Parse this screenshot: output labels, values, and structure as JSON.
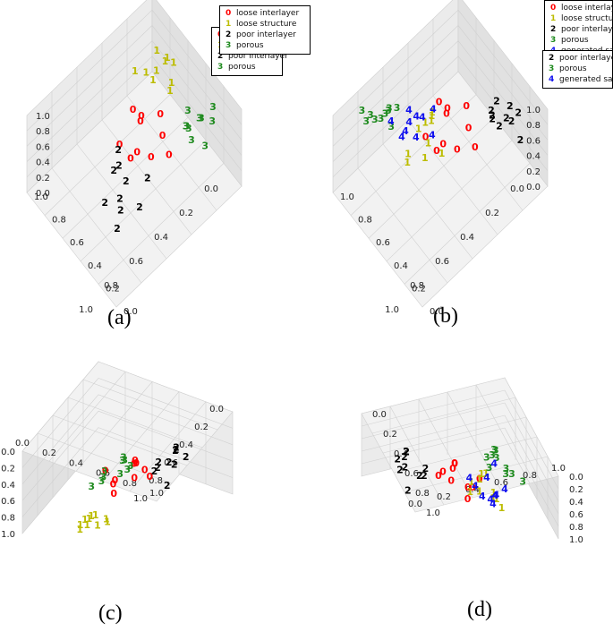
{
  "colors": {
    "0": "#ff0000",
    "1": "#bcbc00",
    "2": "#000000",
    "3": "#1e8a1e",
    "4": "#1010ee"
  },
  "chart_data": [
    {
      "type": "scatter",
      "caption": "(a)",
      "view": "default",
      "legend": {
        "back": [
          {
            "num": "0",
            "label": "loose interlayer"
          },
          {
            "num": "1",
            "label": "loose structure"
          },
          {
            "num": "2",
            "label": "poor interlayer"
          },
          {
            "num": "3",
            "label": "porous"
          }
        ],
        "front": [
          {
            "num": "0",
            "label": "loose interlayer"
          },
          {
            "num": "1",
            "label": "loose structure"
          },
          {
            "num": "2",
            "label": "poor interlayer"
          },
          {
            "num": "3",
            "label": "porous"
          }
        ]
      },
      "axes": {
        "x_ticks": [
          "0.0",
          "0.2",
          "0.4",
          "0.6",
          "0.8",
          "1.0"
        ],
        "y_ticks": [
          "1.0",
          "0.8",
          "0.6",
          "0.4",
          "0.2",
          "0.0"
        ],
        "z_ticks": [
          "0.0",
          "0.2",
          "0.4",
          "0.6",
          "0.8",
          "1.0"
        ]
      },
      "xlim": [
        0,
        1
      ],
      "ylim": [
        0,
        1
      ],
      "zlim": [
        0,
        1
      ],
      "series": [
        {
          "name": "loose interlayer",
          "marker": "0",
          "x": [
            0.3,
            0.42,
            0.26,
            0.35,
            0.46,
            0.22,
            0.38,
            0.5,
            0.31,
            0.28
          ],
          "y": [
            0.3,
            0.42,
            0.48,
            0.36,
            0.28,
            0.4,
            0.52,
            0.46,
            0.22,
            0.58
          ],
          "z": [
            0.3,
            0.2,
            0.25,
            0.4,
            0.15,
            0.35,
            0.22,
            0.3,
            0.28,
            0.18
          ]
        },
        {
          "name": "loose structure",
          "marker": "1",
          "x": [
            0.12,
            0.18,
            0.1,
            0.22,
            0.16,
            0.25,
            0.08,
            0.2,
            0.14,
            0.28
          ],
          "y": [
            0.22,
            0.3,
            0.38,
            0.24,
            0.44,
            0.36,
            0.28,
            0.48,
            0.34,
            0.2
          ],
          "z": [
            0.75,
            0.7,
            0.8,
            0.65,
            0.72,
            0.78,
            0.68,
            0.74,
            0.82,
            0.7
          ]
        },
        {
          "name": "poor interlayer",
          "marker": "2",
          "x": [
            0.55,
            0.65,
            0.48,
            0.72,
            0.6,
            0.52,
            0.68,
            0.58,
            0.62,
            0.75
          ],
          "y": [
            0.4,
            0.55,
            0.62,
            0.48,
            0.7,
            0.35,
            0.6,
            0.52,
            0.44,
            0.66
          ],
          "z": [
            0.2,
            0.15,
            0.25,
            0.1,
            0.18,
            0.28,
            0.12,
            0.22,
            0.3,
            0.08
          ]
        },
        {
          "name": "porous",
          "marker": "3",
          "x": [
            0.18,
            0.24,
            0.12,
            0.28,
            0.2,
            0.15,
            0.3,
            0.22,
            0.26,
            0.1
          ],
          "y": [
            0.78,
            0.72,
            0.84,
            0.8,
            0.68,
            0.76,
            0.86,
            0.9,
            0.74,
            0.82
          ],
          "z": [
            0.8,
            0.7,
            0.75,
            0.85,
            0.78,
            0.72,
            0.82,
            0.68,
            0.76,
            0.88
          ]
        }
      ]
    },
    {
      "type": "scatter",
      "caption": "(b)",
      "view": "default",
      "legend": {
        "back": [
          {
            "num": "0",
            "label": "loose interlayer"
          },
          {
            "num": "1",
            "label": "loose structure"
          },
          {
            "num": "2",
            "label": "poor interlayer"
          },
          {
            "num": "3",
            "label": "porous"
          },
          {
            "num": "4",
            "label": "generated sample"
          }
        ],
        "front": [
          {
            "num": "2",
            "label": "poor interlayer"
          },
          {
            "num": "3",
            "label": "porous"
          },
          {
            "num": "4",
            "label": "generated sample"
          }
        ]
      },
      "axes": {
        "x_ticks": [
          "0.0",
          "0.2",
          "0.4",
          "0.6",
          "0.8",
          "1.0"
        ],
        "y_ticks": [
          "1.0",
          "0.8",
          "0.6",
          "0.4",
          "0.2",
          "0.0"
        ],
        "z_ticks": [
          "0.0",
          "0.2",
          "0.4",
          "0.6",
          "0.8",
          "1.0"
        ]
      },
      "xlim": [
        0,
        1
      ],
      "ylim": [
        0,
        1
      ],
      "zlim": [
        0,
        1
      ],
      "series": [
        {
          "name": "loose interlayer",
          "marker": "0",
          "x": [
            0.3,
            0.42,
            0.26,
            0.35,
            0.46,
            0.22,
            0.38,
            0.5,
            0.31,
            0.28
          ],
          "y": [
            0.3,
            0.42,
            0.48,
            0.36,
            0.28,
            0.4,
            0.52,
            0.46,
            0.22,
            0.58
          ],
          "z": [
            0.4,
            0.3,
            0.35,
            0.5,
            0.25,
            0.45,
            0.32,
            0.4,
            0.38,
            0.28
          ]
        },
        {
          "name": "loose structure",
          "marker": "1",
          "x": [
            0.5,
            0.56,
            0.46,
            0.62,
            0.54,
            0.48,
            0.6,
            0.52,
            0.58,
            0.44
          ],
          "y": [
            0.4,
            0.34,
            0.46,
            0.3,
            0.42,
            0.38,
            0.28,
            0.36,
            0.44,
            0.32
          ],
          "z": [
            0.7,
            0.6,
            0.3,
            0.2,
            0.5,
            0.75,
            0.25,
            0.65,
            0.4,
            0.55
          ]
        },
        {
          "name": "poor interlayer",
          "marker": "2",
          "x": [
            0.05,
            0.1,
            0.02,
            0.12,
            0.08,
            0.04,
            0.15,
            0.06,
            0.1,
            0.03
          ],
          "y": [
            0.5,
            0.6,
            0.7,
            0.55,
            0.65,
            0.75,
            0.58,
            0.68,
            0.52,
            0.62
          ],
          "z": [
            0.4,
            0.3,
            0.5,
            0.35,
            0.45,
            0.25,
            0.55,
            0.42,
            0.32,
            0.48
          ]
        },
        {
          "name": "porous",
          "marker": "3",
          "x": [
            0.7,
            0.78,
            0.66,
            0.82,
            0.74,
            0.68,
            0.8,
            0.72,
            0.76,
            0.84
          ],
          "y": [
            0.2,
            0.16,
            0.24,
            0.12,
            0.22,
            0.18,
            0.14,
            0.26,
            0.2,
            0.1
          ],
          "z": [
            0.85,
            0.8,
            0.88,
            0.78,
            0.9,
            0.82,
            0.86,
            0.76,
            0.84,
            0.92
          ]
        },
        {
          "name": "generated sample",
          "marker": "4",
          "x": [
            0.5,
            0.6,
            0.45,
            0.65,
            0.55,
            0.48,
            0.62,
            0.52,
            0.58,
            0.68
          ],
          "y": [
            0.3,
            0.25,
            0.35,
            0.28,
            0.22,
            0.38,
            0.32,
            0.26,
            0.34,
            0.2
          ],
          "z": [
            0.6,
            0.5,
            0.7,
            0.55,
            0.65,
            0.45,
            0.75,
            0.58,
            0.52,
            0.68
          ]
        }
      ]
    },
    {
      "type": "scatter",
      "caption": "(c)",
      "view": "top",
      "legend": null,
      "axes": {
        "x_ticks": [
          "0.0",
          "0.2",
          "0.4",
          "0.6",
          "0.8",
          "1.0"
        ],
        "y_ticks": [
          "0.0",
          "0.2",
          "0.4",
          "0.6",
          "0.8",
          "1.0"
        ],
        "z_ticks": [
          "0.0",
          "0.2",
          "0.4",
          "0.6",
          "0.8",
          "1.0"
        ]
      },
      "xlim": [
        0,
        1
      ],
      "ylim": [
        0,
        1
      ],
      "zlim": [
        0,
        1
      ],
      "series": [
        {
          "name": "loose interlayer",
          "marker": "0",
          "x": [
            0.5,
            0.55,
            0.45,
            0.6,
            0.52,
            0.48,
            0.58,
            0.42,
            0.62,
            0.54
          ],
          "y": [
            0.4,
            0.5,
            0.6,
            0.45,
            0.7,
            0.35,
            0.55,
            0.65,
            0.42,
            0.75
          ],
          "z": [
            0.5,
            0.4,
            0.6,
            0.5,
            0.4,
            0.6,
            0.5,
            0.4,
            0.6,
            0.5
          ]
        },
        {
          "name": "loose structure",
          "marker": "1",
          "x": [
            0.4,
            0.46,
            0.36,
            0.5,
            0.42,
            0.38,
            0.48,
            0.44,
            0.34,
            0.52
          ],
          "y": [
            0.8,
            0.85,
            0.88,
            0.78,
            0.92,
            0.82,
            0.86,
            0.9,
            0.84,
            0.8
          ],
          "z": [
            0.8,
            0.7,
            0.9,
            0.8,
            0.7,
            0.9,
            0.8,
            0.7,
            0.9,
            0.8
          ]
        },
        {
          "name": "poor interlayer",
          "marker": "2",
          "x": [
            0.75,
            0.8,
            0.7,
            0.85,
            0.78,
            0.72,
            0.82,
            0.76,
            0.74,
            0.88
          ],
          "y": [
            0.3,
            0.4,
            0.5,
            0.35,
            0.6,
            0.25,
            0.45,
            0.55,
            0.38,
            0.65
          ],
          "z": [
            0.3,
            0.2,
            0.4,
            0.3,
            0.2,
            0.4,
            0.3,
            0.2,
            0.4,
            0.3
          ]
        },
        {
          "name": "porous",
          "marker": "3",
          "x": [
            0.3,
            0.35,
            0.25,
            0.38,
            0.32,
            0.28,
            0.36,
            0.3,
            0.34,
            0.26
          ],
          "y": [
            0.2,
            0.3,
            0.4,
            0.25,
            0.5,
            0.15,
            0.35,
            0.45,
            0.22,
            0.55
          ],
          "z": [
            0.8,
            0.7,
            0.9,
            0.8,
            0.7,
            0.9,
            0.8,
            0.7,
            0.9,
            0.8
          ]
        }
      ]
    },
    {
      "type": "scatter",
      "caption": "(d)",
      "view": "top-flipped",
      "legend": null,
      "axes": {
        "x_ticks": [
          "1.0",
          "0.8",
          "0.6",
          "0.4",
          "0.2",
          "0.0"
        ],
        "y_ticks": [
          "0.0",
          "0.2",
          "0.4",
          "0.6",
          "0.8",
          "1.0"
        ],
        "z_ticks": [
          "0.0",
          "0.2",
          "0.4",
          "0.6",
          "0.8",
          "1.0"
        ]
      },
      "xlim": [
        0,
        1
      ],
      "ylim": [
        0,
        1
      ],
      "zlim": [
        0,
        1
      ],
      "series": [
        {
          "name": "loose interlayer",
          "marker": "0",
          "x": [
            0.5,
            0.55,
            0.45,
            0.6,
            0.52,
            0.48,
            0.58,
            0.42,
            0.62,
            0.54
          ],
          "y": [
            0.4,
            0.5,
            0.6,
            0.45,
            0.7,
            0.35,
            0.55,
            0.65,
            0.42,
            0.75
          ],
          "z": [
            0.5,
            0.4,
            0.6,
            0.5,
            0.4,
            0.6,
            0.5,
            0.4,
            0.6,
            0.5
          ]
        },
        {
          "name": "loose structure",
          "marker": "1",
          "x": [
            0.35,
            0.4,
            0.32,
            0.44,
            0.38,
            0.3,
            0.42,
            0.36,
            0.46,
            0.34
          ],
          "y": [
            0.5,
            0.6,
            0.7,
            0.55,
            0.8,
            0.45,
            0.65,
            0.75,
            0.58,
            0.85
          ],
          "z": [
            0.6,
            0.5,
            0.7,
            0.6,
            0.5,
            0.7,
            0.6,
            0.5,
            0.7,
            0.6
          ]
        },
        {
          "name": "poor interlayer",
          "marker": "2",
          "x": [
            0.8,
            0.85,
            0.75,
            0.88,
            0.82,
            0.78,
            0.9,
            0.76,
            0.84,
            0.92
          ],
          "y": [
            0.3,
            0.4,
            0.5,
            0.35,
            0.6,
            0.25,
            0.45,
            0.55,
            0.38,
            0.65
          ],
          "z": [
            0.3,
            0.2,
            0.4,
            0.3,
            0.2,
            0.4,
            0.3,
            0.2,
            0.4,
            0.3
          ]
        },
        {
          "name": "porous",
          "marker": "3",
          "x": [
            0.15,
            0.2,
            0.1,
            0.22,
            0.18,
            0.12,
            0.24,
            0.16,
            0.14,
            0.08
          ],
          "y": [
            0.2,
            0.3,
            0.4,
            0.25,
            0.5,
            0.15,
            0.35,
            0.45,
            0.22,
            0.55
          ],
          "z": [
            0.8,
            0.7,
            0.9,
            0.8,
            0.7,
            0.9,
            0.8,
            0.7,
            0.9,
            0.8
          ]
        },
        {
          "name": "generated sample",
          "marker": "4",
          "x": [
            0.35,
            0.42,
            0.3,
            0.45,
            0.38,
            0.28,
            0.4,
            0.33,
            0.48,
            0.36
          ],
          "y": [
            0.6,
            0.7,
            0.8,
            0.65,
            0.75,
            0.55,
            0.85,
            0.72,
            0.62,
            0.78
          ],
          "z": [
            0.5,
            0.6,
            0.4,
            0.5,
            0.6,
            0.4,
            0.5,
            0.6,
            0.4,
            0.5
          ]
        }
      ]
    }
  ]
}
